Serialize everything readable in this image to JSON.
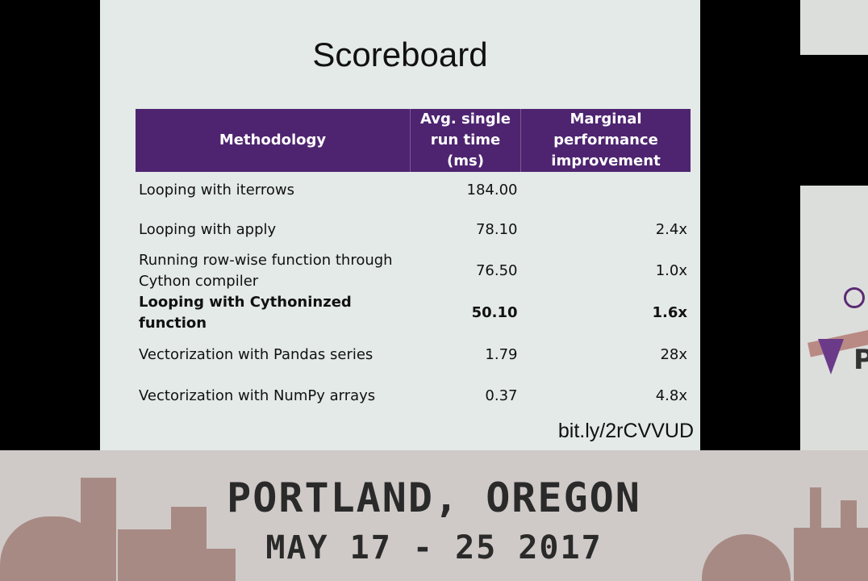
{
  "slide": {
    "title": "Scoreboard",
    "link": "bit.ly/2rCVVUD",
    "table": {
      "headers": [
        "Methodology",
        "Avg. single run time (ms)",
        "Marginal performance improvement"
      ],
      "rows": [
        {
          "method": "Looping with iterrows",
          "time": "184.00",
          "improvement": ""
        },
        {
          "method": "Looping with apply",
          "time": "78.10",
          "improvement": "2.4x"
        },
        {
          "method": "Running row-wise function through Cython compiler",
          "time": "76.50",
          "improvement": "1.0x"
        },
        {
          "method": "Looping with Cythoninzed function",
          "time": "50.10",
          "improvement": "1.6x"
        },
        {
          "method": "Vectorization with Pandas series",
          "time": "1.79",
          "improvement": "28x"
        },
        {
          "method": "Vectorization with NumPy arrays",
          "time": "0.37",
          "improvement": "4.8x"
        }
      ]
    }
  },
  "banner": {
    "city": "PORTLAND, OREGON",
    "dates": "MAY 17 - 25 2017"
  },
  "side_logo": {
    "letter": "P"
  },
  "colors": {
    "header_purple": "#4e2470",
    "slide_bg": "#e3eae7",
    "banner_bg": "#cfcac7",
    "skyline": "#a88a84"
  }
}
